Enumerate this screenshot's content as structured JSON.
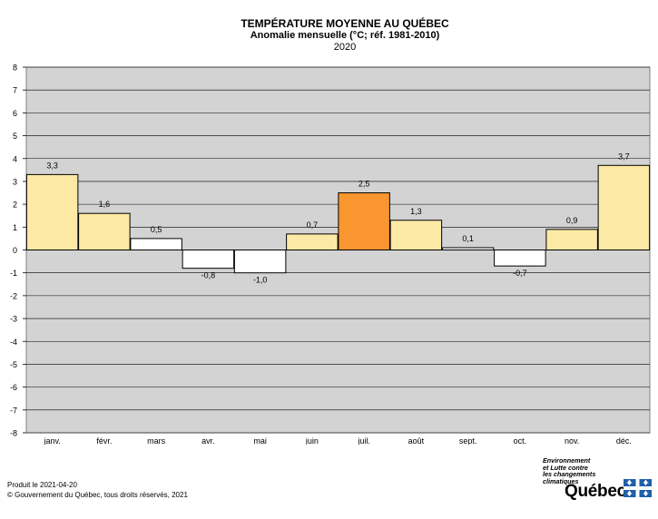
{
  "chart_data": {
    "type": "bar",
    "title": "TEMPÉRATURE MOYENNE AU QUÉBEC",
    "subtitle": "Anomalie mensuelle (°C; réf. 1981-2010)",
    "year": "2020",
    "categories": [
      "janv.",
      "févr.",
      "mars",
      "avr.",
      "mai",
      "juin",
      "juil.",
      "août",
      "sept.",
      "oct.",
      "nov.",
      "déc."
    ],
    "values": [
      3.3,
      1.6,
      0.5,
      -0.8,
      -1.0,
      0.7,
      2.5,
      1.3,
      0.1,
      -0.7,
      0.9,
      3.7
    ],
    "value_labels": [
      "3,3",
      "1,6",
      "0,5",
      "-0,8",
      "-1,0",
      "0,7",
      "2,5",
      "1,3",
      "0,1",
      "-0,7",
      "0,9",
      "3,7"
    ],
    "bar_colors": [
      "#FDE9A6",
      "#FDE9A6",
      "#FFFFFF",
      "#FFFFFF",
      "#FFFFFF",
      "#FDE9A6",
      "#FA9630",
      "#FDE9A6",
      "#FFFFFF",
      "#FFFFFF",
      "#FDE9A6",
      "#FDE9A6"
    ],
    "ylim": [
      -8,
      8
    ],
    "yticks": [
      8,
      7,
      6,
      5,
      4,
      3,
      2,
      1,
      0,
      -1,
      -2,
      -3,
      -4,
      -5,
      -6,
      -7,
      -8
    ],
    "grid": true,
    "plot_background": "#D3D3D3",
    "xlabel": "",
    "ylabel": ""
  },
  "footer": {
    "produced": "Produit le 2021-04-20",
    "copyright": "© Gouvernement du Québec, tous droits réservés, 2021"
  },
  "logo": {
    "department": [
      "Environnement",
      "et Lutte contre",
      "les changements",
      "climatiques"
    ],
    "name": "Québec",
    "flag_color": "#1F5FA8"
  }
}
